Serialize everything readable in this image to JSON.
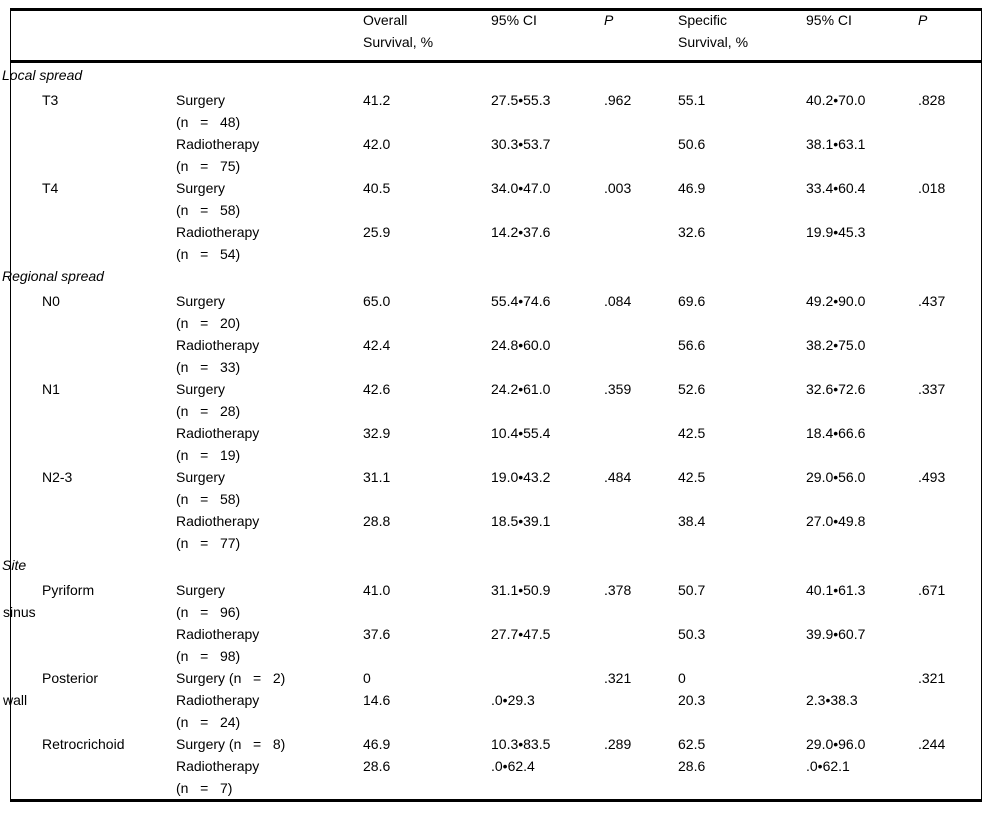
{
  "table": {
    "header": {
      "overall": [
        "Overall",
        "Survival, %"
      ],
      "ci_overall": "95% CI",
      "p_overall": "P",
      "specific": [
        "Specific",
        "Survival, %"
      ],
      "ci_specific": "95% CI",
      "p_specific": "P"
    },
    "rule_color": "#000000",
    "sections": [
      {
        "label": "Local spread",
        "groups": [
          {
            "stub": [
              "T3"
            ],
            "rows": [
              {
                "treatment": "Surgery",
                "n": "(n   =   48)",
                "os": "41.2",
                "os_ci": "27.5•55.3",
                "p": ".962",
                "ss": "55.1",
                "ss_ci": "40.2•70.0",
                "sp": ".828"
              },
              {
                "treatment": "Radiotherapy",
                "n": "(n   =   75)",
                "os": "42.0",
                "os_ci": "30.3•53.7",
                "p": "",
                "ss": "50.6",
                "ss_ci": "38.1•63.1",
                "sp": ""
              }
            ]
          },
          {
            "stub": [
              "T4"
            ],
            "rows": [
              {
                "treatment": "Surgery",
                "n": "(n   =   58)",
                "os": "40.5",
                "os_ci": "34.0•47.0",
                "p": ".003",
                "ss": "46.9",
                "ss_ci": "33.4•60.4",
                "sp": ".018"
              },
              {
                "treatment": "Radiotherapy",
                "n": "(n   =   54)",
                "os": "25.9",
                "os_ci": "14.2•37.6",
                "p": "",
                "ss": "32.6",
                "ss_ci": "19.9•45.3",
                "sp": ""
              }
            ]
          }
        ]
      },
      {
        "label": "Regional spread",
        "groups": [
          {
            "stub": [
              "N0"
            ],
            "rows": [
              {
                "treatment": "Surgery",
                "n": "(n   =   20)",
                "os": "65.0",
                "os_ci": "55.4•74.6",
                "p": ".084",
                "ss": "69.6",
                "ss_ci": "49.2•90.0",
                "sp": ".437"
              },
              {
                "treatment": "Radiotherapy",
                "n": "(n   =   33)",
                "os": "42.4",
                "os_ci": "24.8•60.0",
                "p": "",
                "ss": "56.6",
                "ss_ci": "38.2•75.0",
                "sp": ""
              }
            ]
          },
          {
            "stub": [
              "N1"
            ],
            "rows": [
              {
                "treatment": "Surgery",
                "n": "(n   =   28)",
                "os": "42.6",
                "os_ci": "24.2•61.0",
                "p": ".359",
                "ss": "52.6",
                "ss_ci": "32.6•72.6",
                "sp": ".337"
              },
              {
                "treatment": "Radiotherapy",
                "n": "(n   =   19)",
                "os": "32.9",
                "os_ci": "10.4•55.4",
                "p": "",
                "ss": "42.5",
                "ss_ci": "18.4•66.6",
                "sp": ""
              }
            ]
          },
          {
            "stub": [
              "N2-3"
            ],
            "rows": [
              {
                "treatment": "Surgery",
                "n": "(n   =   58)",
                "os": "31.1",
                "os_ci": "19.0•43.2",
                "p": ".484",
                "ss": "42.5",
                "ss_ci": "29.0•56.0",
                "sp": ".493"
              },
              {
                "treatment": "Radiotherapy",
                "n": "(n   =   77)",
                "os": "28.8",
                "os_ci": "18.5•39.1",
                "p": "",
                "ss": "38.4",
                "ss_ci": "27.0•49.8",
                "sp": ""
              }
            ]
          }
        ]
      },
      {
        "label": "Site",
        "groups": [
          {
            "stub": [
              "Pyriform",
              "sinus"
            ],
            "rows": [
              {
                "treatment": "Surgery",
                "n": "(n   =   96)",
                "os": "41.0",
                "os_ci": "31.1•50.9",
                "p": ".378",
                "ss": "50.7",
                "ss_ci": "40.1•61.3",
                "sp": ".671"
              },
              {
                "treatment": "Radiotherapy",
                "n": "(n   =   98)",
                "os": "37.6",
                "os_ci": "27.7•47.5",
                "p": "",
                "ss": "50.3",
                "ss_ci": "39.9•60.7",
                "sp": ""
              }
            ]
          },
          {
            "stub": [
              "Posterior",
              "wall"
            ],
            "rows": [
              {
                "treatment": "Surgery (n   =   2)",
                "n": "",
                "os": "0",
                "os_ci": "",
                "p": ".321",
                "ss": "0",
                "ss_ci": "",
                "sp": ".321"
              },
              {
                "treatment": "Radiotherapy",
                "n": "(n   =   24)",
                "os": "14.6",
                "os_ci": ".0•29.3",
                "p": "",
                "ss": "20.3",
                "ss_ci": "2.3•38.3",
                "sp": ""
              }
            ]
          },
          {
            "stub": [
              "Retrocrichoid"
            ],
            "rows": [
              {
                "treatment": "Surgery (n   =   8)",
                "n": "",
                "os": "46.9",
                "os_ci": "10.3•83.5",
                "p": ".289",
                "ss": "62.5",
                "ss_ci": "29.0•96.0",
                "sp": ".244"
              },
              {
                "treatment": "Radiotherapy",
                "n": "(n   =   7)",
                "os": "28.6",
                "os_ci": ".0•62.4",
                "p": "",
                "ss": "28.6",
                "ss_ci": ".0•62.1",
                "sp": ""
              }
            ]
          }
        ]
      }
    ]
  }
}
